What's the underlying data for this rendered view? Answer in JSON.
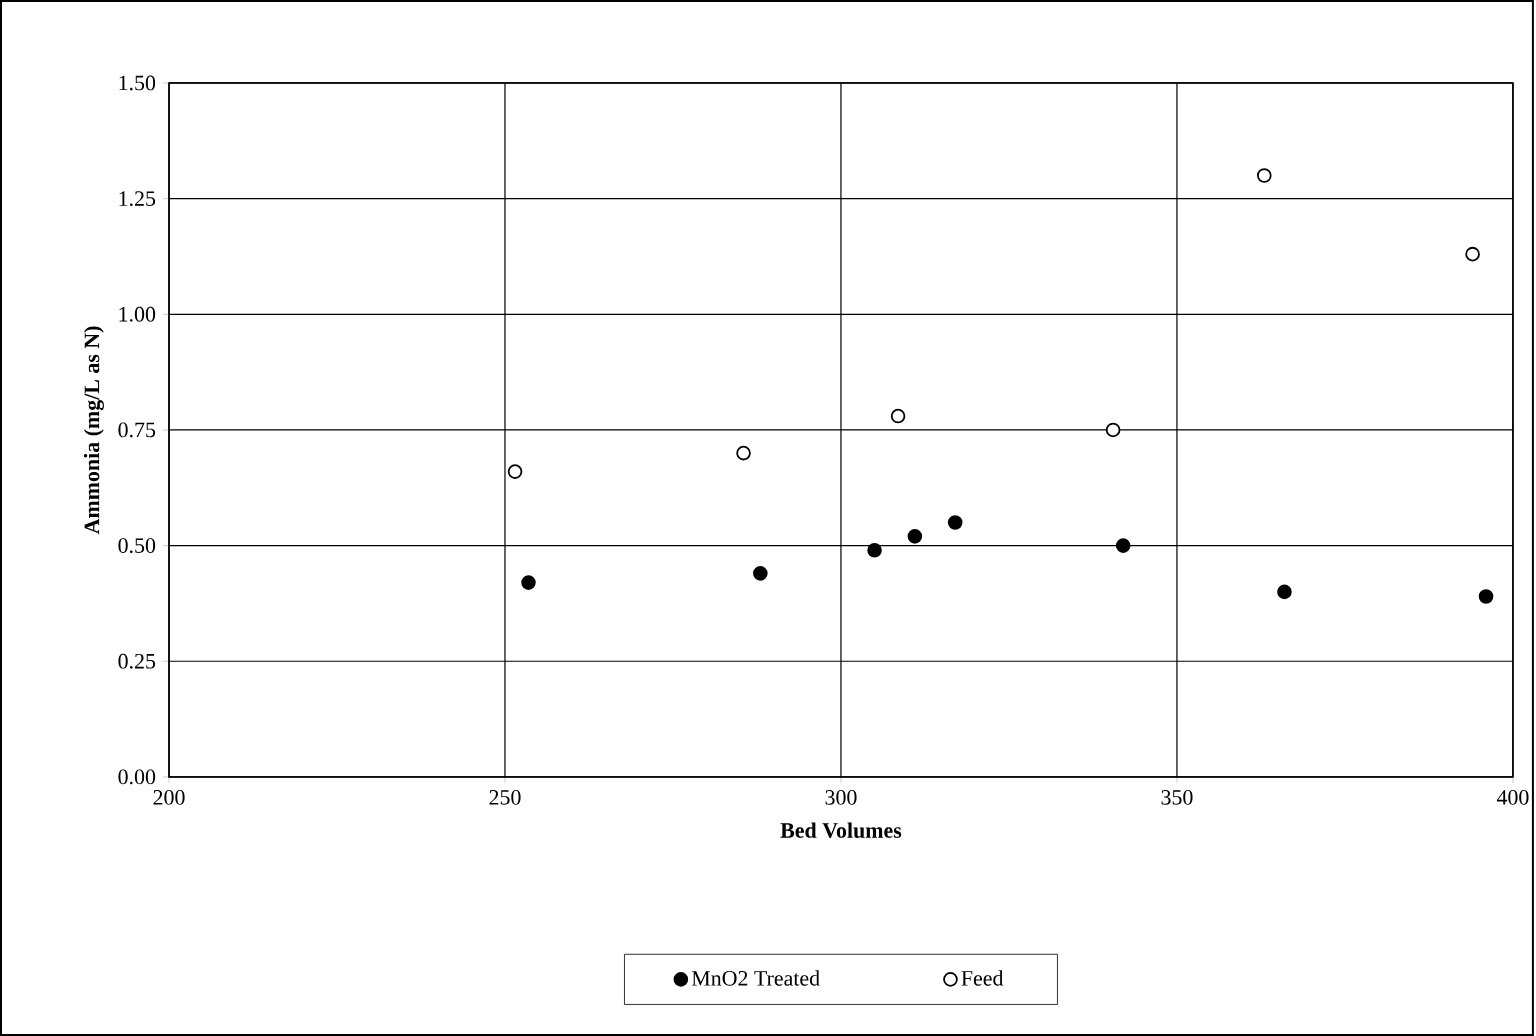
{
  "chart_data": {
    "type": "scatter",
    "xlabel": "Bed Volumes",
    "ylabel": "Ammonia (mg/L as N)",
    "xlim": [
      200,
      400
    ],
    "ylim": [
      0,
      1.5
    ],
    "xticks": [
      200,
      250,
      300,
      350,
      400
    ],
    "yticks": [
      {
        "value": 0,
        "label": "0.00"
      },
      {
        "value": 0.25,
        "label": "0.25"
      },
      {
        "value": 0.5,
        "label": "0.50"
      },
      {
        "value": 0.75,
        "label": "0.75"
      },
      {
        "value": 1,
        "label": "1.00"
      },
      {
        "value": 1.25,
        "label": "1.25"
      },
      {
        "value": 1.5,
        "label": "1.50"
      }
    ],
    "grid": true,
    "legend": "bottom",
    "marker": "circle",
    "series": [
      {
        "name": "MnO2 Treated",
        "color": "#000000",
        "x": [
          253.5,
          288,
          305,
          311,
          317,
          342,
          366,
          396
        ],
        "values": [
          0.42,
          0.44,
          0.49,
          0.52,
          0.55,
          0.5,
          0.4,
          0.39
        ]
      },
      {
        "name": "Feed",
        "color": "#ffffff",
        "x": [
          251.5,
          285.5,
          308.5,
          340.5,
          363,
          394
        ],
        "values": [
          0.66,
          0.7,
          0.78,
          0.75,
          1.3,
          1.13
        ]
      }
    ]
  }
}
